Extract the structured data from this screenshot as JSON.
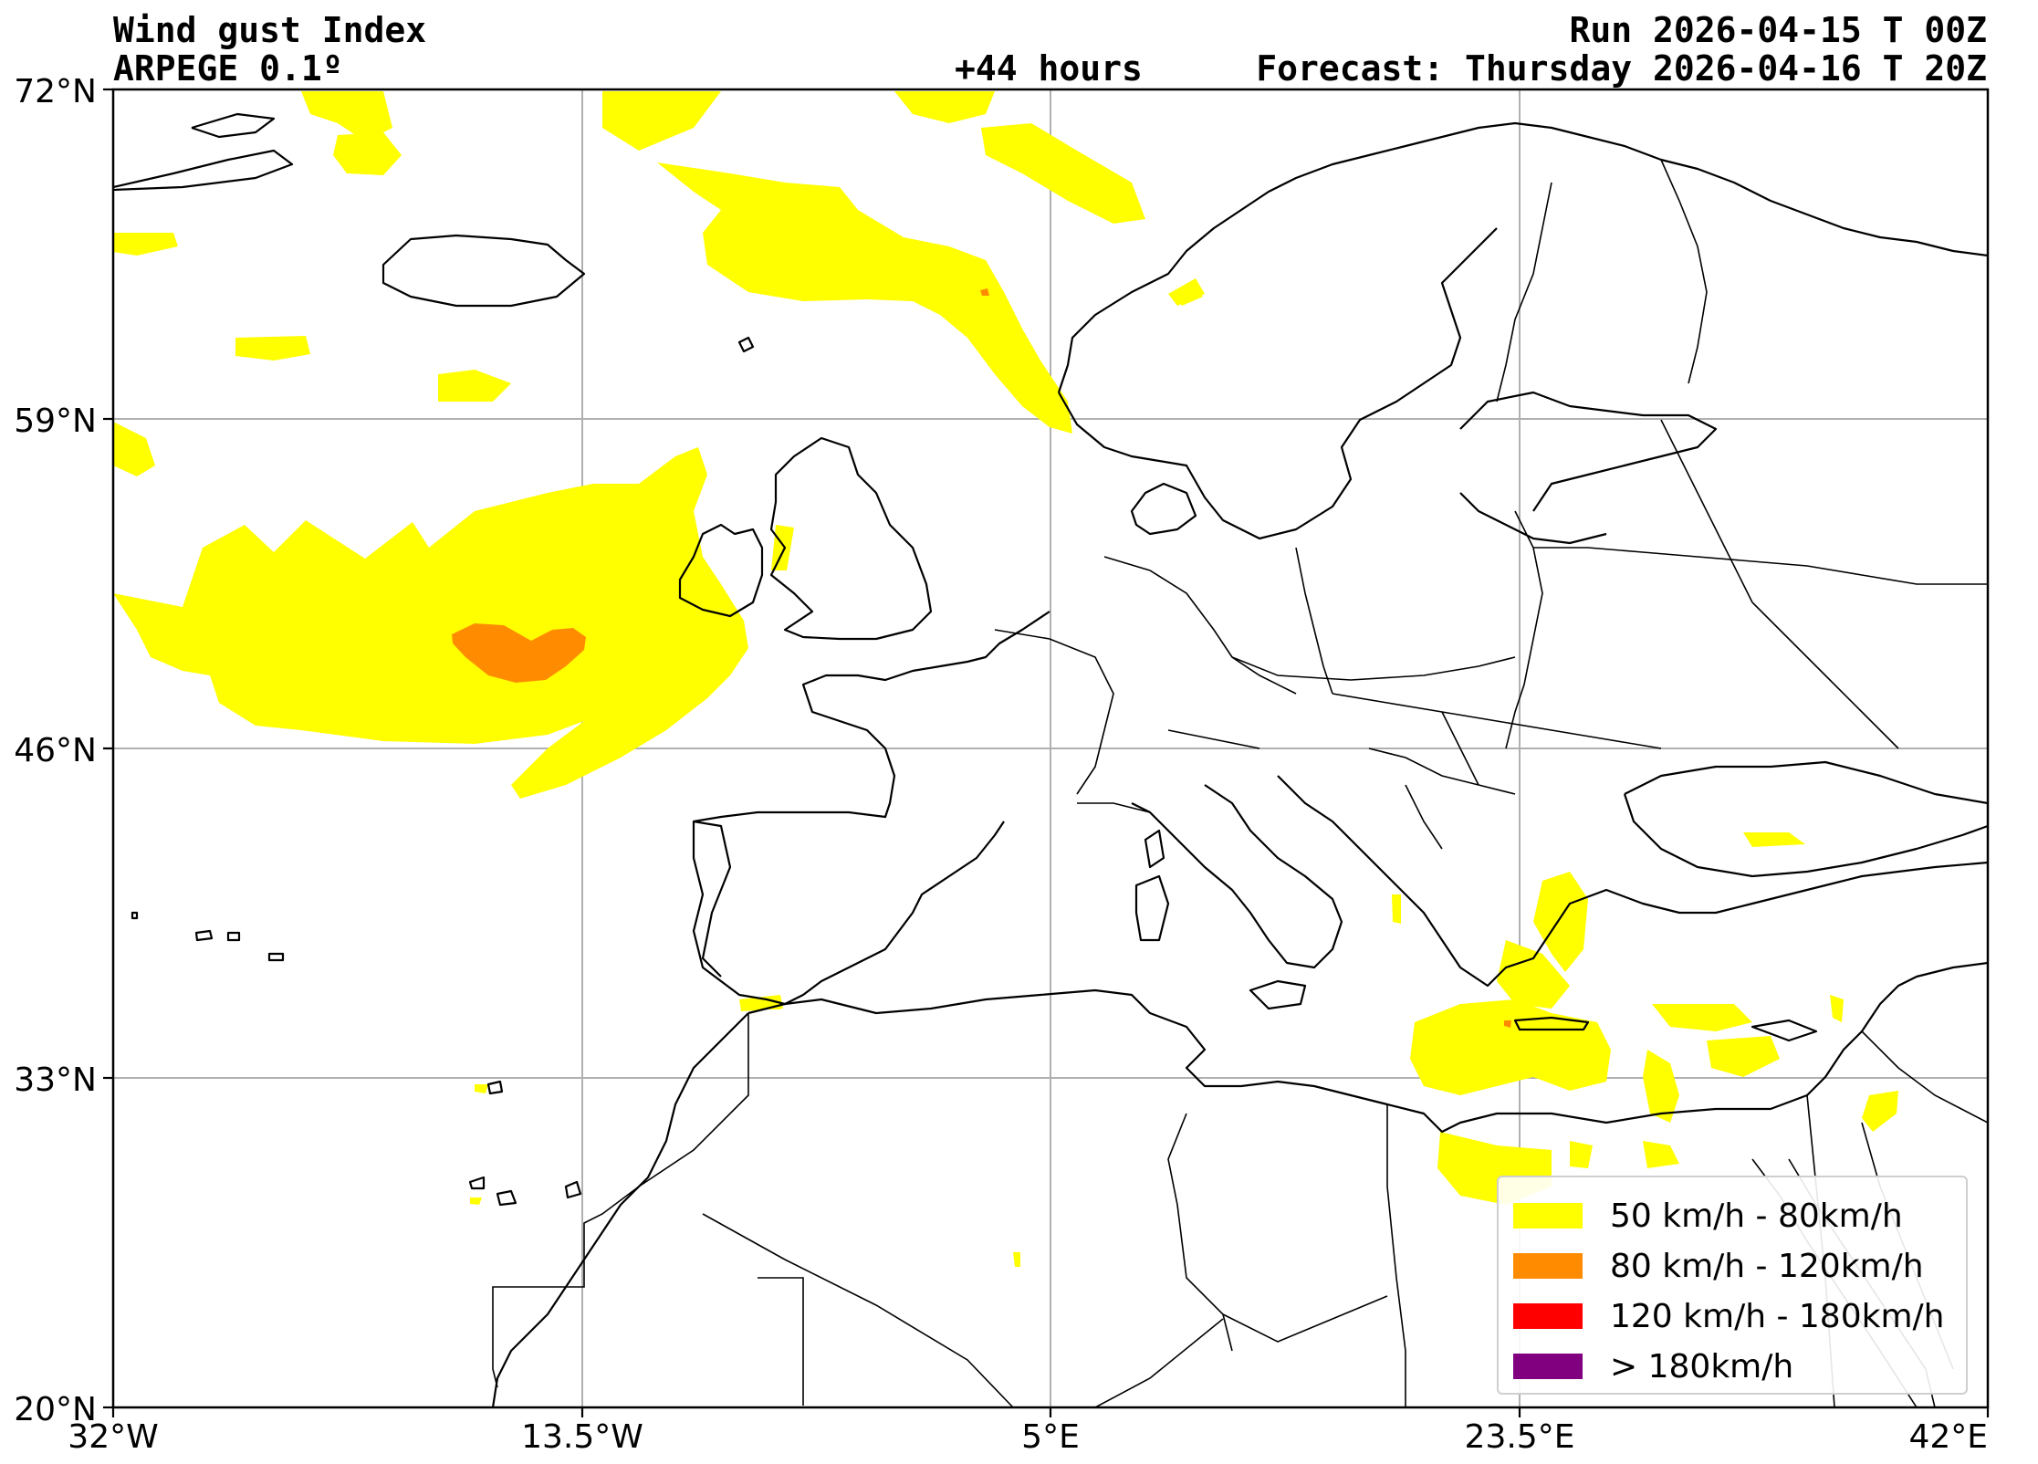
{
  "header": {
    "title": "Wind gust Index",
    "model": "ARPEGE 0.1º",
    "lead_time": "+44 hours",
    "run": "Run 2026-04-15 T 00Z",
    "forecast": "Forecast: Thursday 2026-04-16 T 20Z"
  },
  "axes": {
    "x_ticks": [
      "32°W",
      "13.5°W",
      "5°E",
      "23.5°E",
      "42°E"
    ],
    "y_ticks": [
      "72°N",
      "59°N",
      "46°N",
      "33°N",
      "20°N"
    ]
  },
  "legend": {
    "items": [
      {
        "label": "50 km/h - 80km/h",
        "color": "#ffff00"
      },
      {
        "label": "80 km/h - 120km/h",
        "color": "#ff8c00"
      },
      {
        "label": "120 km/h - 180km/h",
        "color": "#ff0000"
      },
      {
        "label": "> 180km/h",
        "color": "#800080"
      }
    ]
  },
  "colors": {
    "gust_50_80": "#ffff00",
    "gust_80_120": "#ff8c00",
    "gust_120_180": "#ff0000",
    "gust_180_plus": "#800080",
    "coastline": "#000000",
    "grid": "#b0b0b0"
  }
}
